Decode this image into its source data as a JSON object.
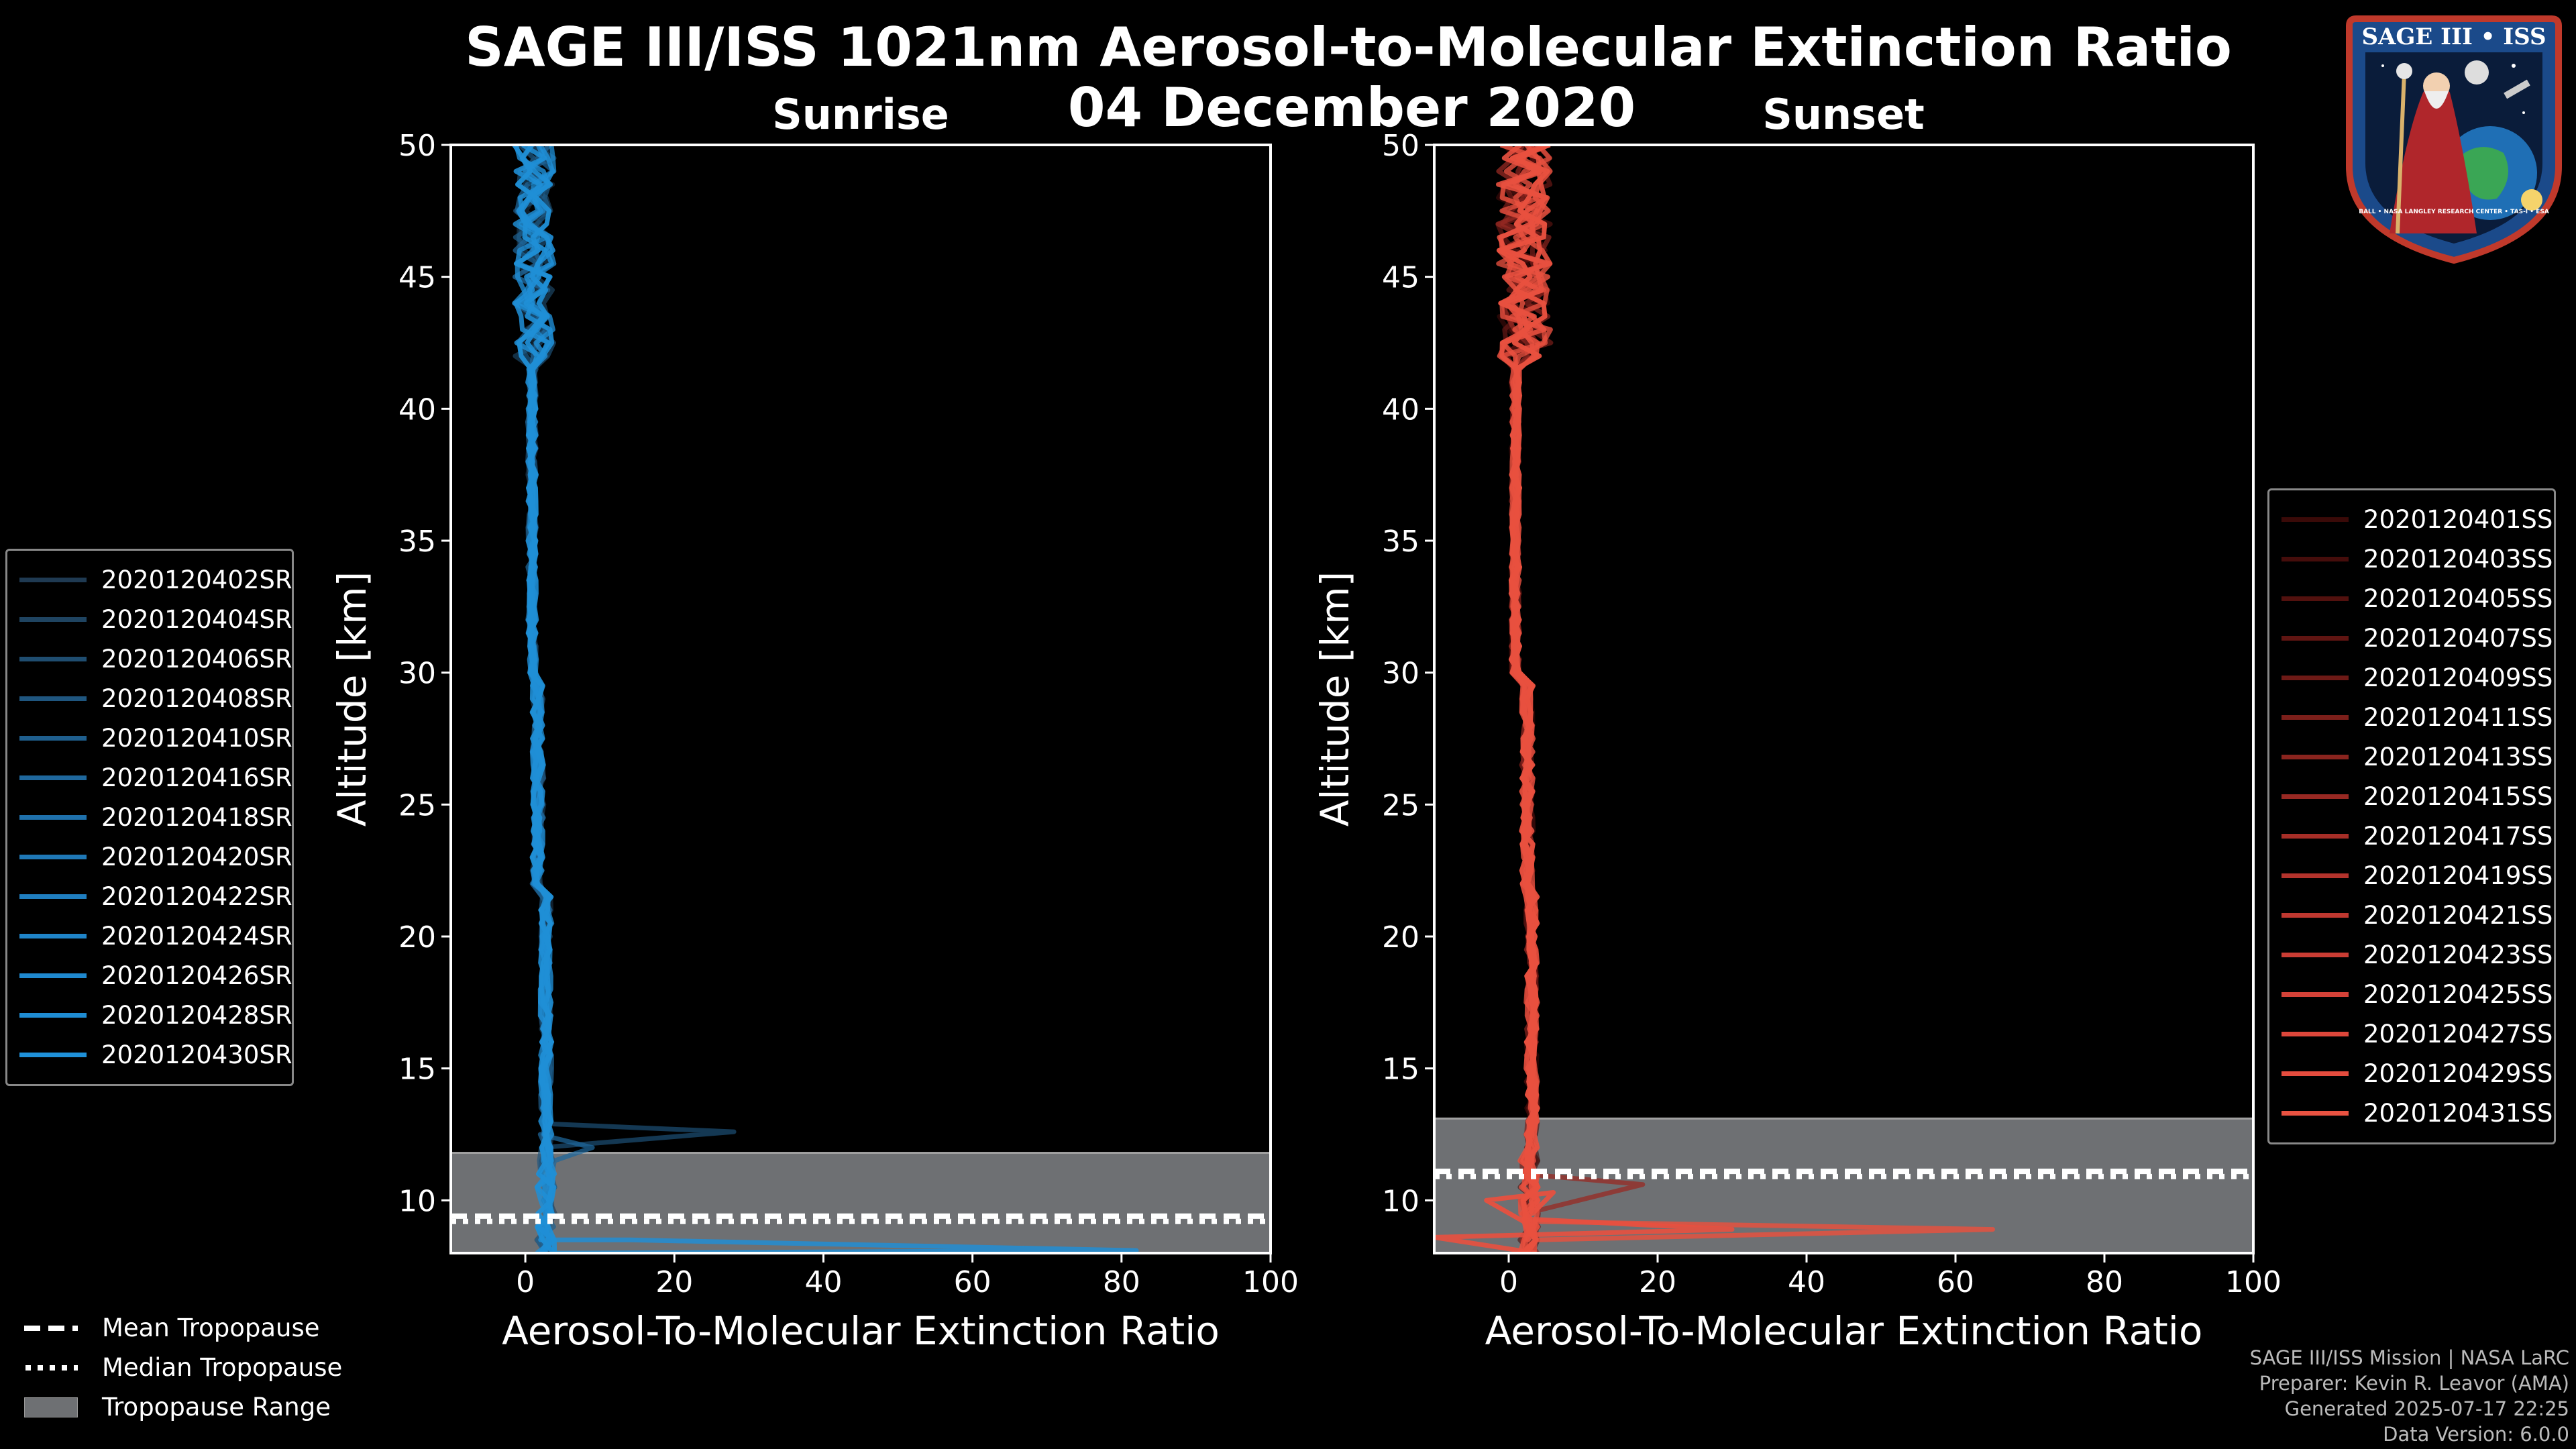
{
  "title_line1": "SAGE III/ISS 1021nm Aerosol-to-Molecular Extinction Ratio",
  "title_line2": "04 December 2020",
  "chart_data": [
    {
      "type": "line",
      "panel": "sunrise",
      "title": "Sunrise",
      "xlabel": "Aerosol-To-Molecular Extinction Ratio",
      "ylabel": "Altitude [km]",
      "xlim": [
        -10,
        100
      ],
      "ylim": [
        8,
        50
      ],
      "xticks": [
        0,
        20,
        40,
        60,
        80,
        100
      ],
      "yticks": [
        10,
        15,
        20,
        25,
        30,
        35,
        40,
        45,
        50
      ],
      "tropopause": {
        "range": [
          8,
          11.8
        ],
        "mean": 9.4,
        "median": 9.2
      },
      "series_color": "#1f8fd6",
      "series": [
        {
          "name": "2020120402SR",
          "color": "#1f3a52"
        },
        {
          "name": "2020120404SR",
          "color": "#1f4461"
        },
        {
          "name": "2020120406SR",
          "color": "#1f4d70"
        },
        {
          "name": "2020120408SR",
          "color": "#1f567f"
        },
        {
          "name": "2020120410SR",
          "color": "#1f5f8e"
        },
        {
          "name": "2020120416SR",
          "color": "#1f689d"
        },
        {
          "name": "2020120418SR",
          "color": "#1f71ac"
        },
        {
          "name": "2020120420SR",
          "color": "#1f78b6"
        },
        {
          "name": "2020120422SR",
          "color": "#1f7ec0"
        },
        {
          "name": "2020120424SR",
          "color": "#1f84c8"
        },
        {
          "name": "2020120426SR",
          "color": "#1f89cf"
        },
        {
          "name": "2020120428SR",
          "color": "#1f8dd4"
        },
        {
          "name": "2020120430SR",
          "color": "#1f91d9"
        }
      ]
    },
    {
      "type": "line",
      "panel": "sunset",
      "title": "Sunset",
      "xlabel": "Aerosol-To-Molecular Extinction Ratio",
      "ylabel": "Altitude [km]",
      "xlim": [
        -10,
        100
      ],
      "ylim": [
        8,
        50
      ],
      "xticks": [
        0,
        20,
        40,
        60,
        80,
        100
      ],
      "yticks": [
        10,
        15,
        20,
        25,
        30,
        35,
        40,
        45,
        50
      ],
      "tropopause": {
        "range": [
          8,
          13.1
        ],
        "mean": 11.1,
        "median": 10.9
      },
      "series_color": "#e8503f",
      "series": [
        {
          "name": "2020120401SS",
          "color": "#3a0a08"
        },
        {
          "name": "2020120403SS",
          "color": "#450d0b"
        },
        {
          "name": "2020120405SS",
          "color": "#52110e"
        },
        {
          "name": "2020120407SS",
          "color": "#601512"
        },
        {
          "name": "2020120409SS",
          "color": "#6e1a16"
        },
        {
          "name": "2020120411SS",
          "color": "#7c1f1a"
        },
        {
          "name": "2020120413SS",
          "color": "#8a241e"
        },
        {
          "name": "2020120415SS",
          "color": "#982923"
        },
        {
          "name": "2020120417SS",
          "color": "#a62e27"
        },
        {
          "name": "2020120419SS",
          "color": "#b3332c"
        },
        {
          "name": "2020120421SS",
          "color": "#bf3830"
        },
        {
          "name": "2020120423SS",
          "color": "#ca3d34"
        },
        {
          "name": "2020120425SS",
          "color": "#d44238"
        },
        {
          "name": "2020120427SS",
          "color": "#dd473b"
        },
        {
          "name": "2020120429SS",
          "color": "#e44c3e"
        },
        {
          "name": "2020120431SS",
          "color": "#e95241"
        }
      ]
    }
  ],
  "tropopause_legend": {
    "mean": "Mean Tropopause",
    "median": "Median Tropopause",
    "range": "Tropopause Range"
  },
  "footer": {
    "line1": "SAGE III/ISS Mission | NASA LaRC",
    "line2": "Preparer: Kevin R. Leavor (AMA)",
    "line3": "Generated 2025-07-17 22:25",
    "line4": "Data Version: 6.0.0"
  },
  "logo": {
    "title": "SAGE III • ISS",
    "caption": "BALL • NASA LANGLEY RESEARCH CENTER • TAS-I • ESA"
  }
}
